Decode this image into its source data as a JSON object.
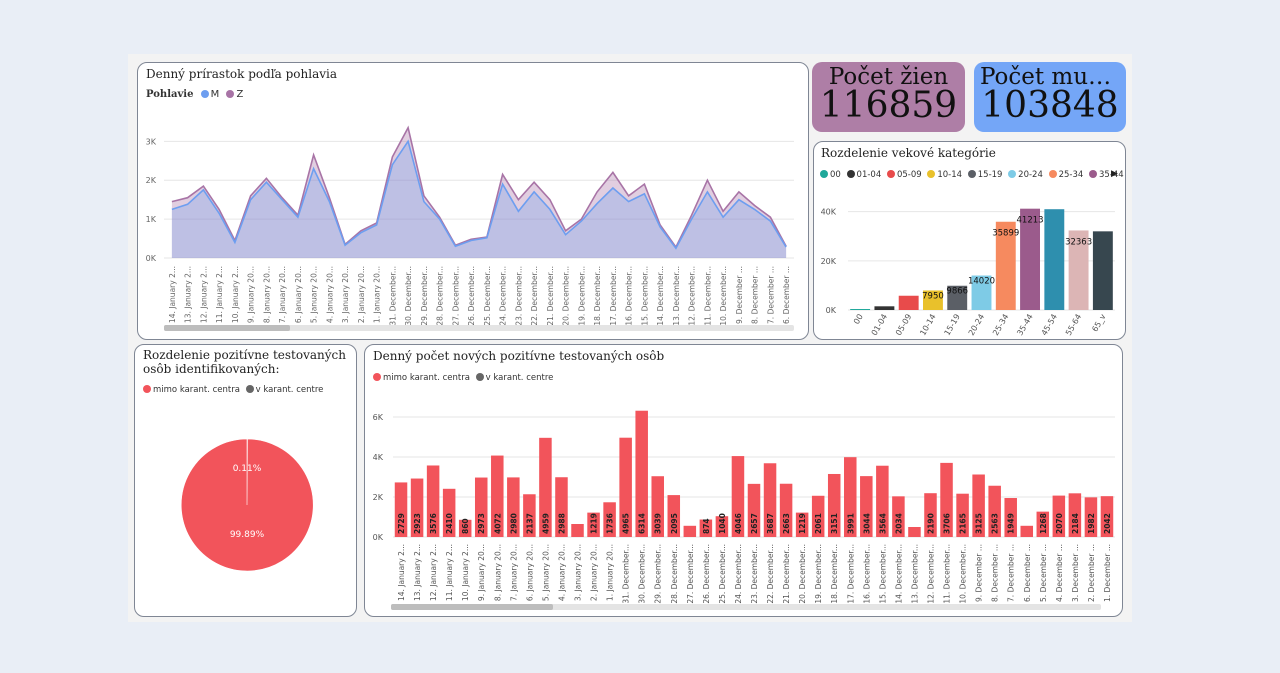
{
  "colors": {
    "m": "#6d9ef0",
    "z": "#a874a6",
    "bar": "#f2545b",
    "grey": "#666666"
  },
  "chart_data": [
    {
      "type": "area",
      "title": "Denný prírastok podľa pohlavia",
      "legend_title": "Pohlavie",
      "series": [
        {
          "name": "M",
          "values": [
            1250,
            1380,
            1750,
            1150,
            400,
            1500,
            1950,
            1500,
            1050,
            2300,
            1450,
            330,
            650,
            850,
            2400,
            3000,
            1450,
            1000,
            300,
            450,
            520,
            1900,
            1200,
            1700,
            1250,
            600,
            950,
            1400,
            1800,
            1450,
            1650,
            800,
            250,
            1000,
            1700,
            1050,
            1500,
            1250,
            950,
            280
          ]
        },
        {
          "name": "Z",
          "values": [
            1450,
            1550,
            1850,
            1250,
            450,
            1600,
            2050,
            1550,
            1100,
            2650,
            1550,
            350,
            700,
            900,
            2600,
            3350,
            1600,
            1050,
            330,
            480,
            540,
            2150,
            1500,
            1950,
            1500,
            700,
            1000,
            1700,
            2200,
            1600,
            1900,
            850,
            280,
            1100,
            2000,
            1200,
            1700,
            1350,
            1050,
            300
          ]
        }
      ],
      "categories": [
        "14. January 2...",
        "13. January 2...",
        "12. January 2...",
        "11. January 2...",
        "10. January 2...",
        "9. January 20...",
        "8. January 20...",
        "7. January 20...",
        "6. January 20...",
        "5. January 20...",
        "4. January 20...",
        "3. January 20...",
        "2. January 20...",
        "1. January 20...",
        "31. December...",
        "30. December...",
        "29. December...",
        "28. December...",
        "27. December...",
        "26. December...",
        "25. December...",
        "24. December...",
        "23. December...",
        "22. December...",
        "21. December...",
        "20. December...",
        "19. December...",
        "18. December...",
        "17. December...",
        "16. December...",
        "15. December...",
        "14. December...",
        "13. December...",
        "12. December...",
        "11. December...",
        "10. December...",
        "9. December ...",
        "8. December ...",
        "7. December ...",
        "6. December ..."
      ],
      "yticks": [
        "0K",
        "1K",
        "2K",
        "3K"
      ],
      "ylim": [
        0,
        3600
      ]
    },
    {
      "type": "bar",
      "title": "Rozdelenie vekové kategórie",
      "legend": [
        {
          "name": "00",
          "color": "#1fa89a"
        },
        {
          "name": "01-04",
          "color": "#333333"
        },
        {
          "name": "05-09",
          "color": "#e84b4b"
        },
        {
          "name": "10-14",
          "color": "#e9c12b"
        },
        {
          "name": "15-19",
          "color": "#5b5f66"
        },
        {
          "name": "20-24",
          "color": "#7ecbe6"
        },
        {
          "name": "25-34",
          "color": "#f68a5f"
        },
        {
          "name": "35-44",
          "color": "#9b5b8c"
        }
      ],
      "categories": [
        "00",
        "01-04",
        "05-09",
        "10-14",
        "15-19",
        "20-24",
        "25-34",
        "35-44",
        "45-54",
        "55-64",
        "65_v"
      ],
      "values": [
        400,
        1500,
        5800,
        7950,
        9866,
        14020,
        35899,
        41213,
        41000,
        32363,
        32000
      ],
      "bar_colors": [
        "#1fa89a",
        "#333333",
        "#e84b4b",
        "#e9c12b",
        "#5b5f66",
        "#7ecbe6",
        "#f68a5f",
        "#9b5b8c",
        "#2e8fae",
        "#dcb5b5",
        "#37474f"
      ],
      "data_labels": [
        "",
        "",
        "",
        "7950",
        "9866",
        "14020",
        "35899",
        "41213",
        "",
        "32363",
        ""
      ],
      "yticks": [
        "0K",
        "20K",
        "40K"
      ],
      "ylim": [
        0,
        48000
      ]
    },
    {
      "type": "pie",
      "title": "Rozdelenie pozitívne testovaných osôb identifikovaných:",
      "legend": [
        {
          "name": "mimo karant. centra",
          "color": "#f2545b"
        },
        {
          "name": "v karant. centre",
          "color": "#666666"
        }
      ],
      "slices": [
        {
          "name": "mimo karant. centra",
          "value": 99.89,
          "label": "99.89%"
        },
        {
          "name": "v karant. centre",
          "value": 0.11,
          "label": "0.11%"
        }
      ]
    },
    {
      "type": "bar",
      "title": "Denný počet nových pozitívne testovaných osôb",
      "legend": [
        {
          "name": "mimo karant. centra",
          "color": "#f2545b"
        },
        {
          "name": "v karant. centre",
          "color": "#666666"
        }
      ],
      "categories": [
        "14. January 2...",
        "13. January 2...",
        "12. January 2...",
        "11. January 2...",
        "10. January 2...",
        "9. January 20...",
        "8. January 20...",
        "7. January 20...",
        "6. January 20...",
        "5. January 20...",
        "4. January 20...",
        "3. January 20...",
        "2. January 20...",
        "1. January 20...",
        "31. December...",
        "30. December...",
        "29. December...",
        "28. December...",
        "27. December...",
        "26. December...",
        "25. December...",
        "24. December...",
        "23. December...",
        "22. December...",
        "21. December...",
        "20. December...",
        "19. December...",
        "18. December...",
        "17. December...",
        "16. December...",
        "15. December...",
        "14. December...",
        "13. December...",
        "12. December...",
        "11. December...",
        "10. December...",
        "9. December ...",
        "8. December ...",
        "7. December ...",
        "6. December ...",
        "5. December ...",
        "4. December ...",
        "3. December ...",
        "2. December ...",
        "1. December ..."
      ],
      "values": [
        2729,
        2923,
        3576,
        2410,
        860,
        2973,
        4072,
        2980,
        2137,
        4959,
        2988,
        650,
        1219,
        1736,
        4965,
        6314,
        3039,
        2095,
        560,
        874,
        1040,
        4046,
        2657,
        3687,
        2663,
        1219,
        2061,
        3151,
        3991,
        3044,
        3564,
        2034,
        500,
        2190,
        3706,
        2165,
        3125,
        2563,
        1949,
        560,
        1268,
        2070,
        2184,
        1982,
        2042
      ],
      "data_labels": [
        "2729",
        "2923",
        "3576",
        "2410",
        "860",
        "2973",
        "4072",
        "2980",
        "2137",
        "4959",
        "2988",
        "",
        "1219",
        "1736",
        "4965",
        "6314",
        "3039",
        "2095",
        "",
        "874",
        "1040",
        "4046",
        "2657",
        "3687",
        "2663",
        "1219",
        "2061",
        "3151",
        "3991",
        "3044",
        "3564",
        "2034",
        "",
        "2190",
        "3706",
        "2165",
        "3125",
        "2563",
        "1949",
        "",
        "1268",
        "2070",
        "2184",
        "1982",
        "2042"
      ],
      "yticks": [
        "0K",
        "2K",
        "4K",
        "6K"
      ],
      "ylim": [
        0,
        6600
      ]
    }
  ],
  "kpi": {
    "women": {
      "label": "Počet žien",
      "value": "116859"
    },
    "men": {
      "label": "Počet muž...",
      "value": "103848"
    }
  }
}
